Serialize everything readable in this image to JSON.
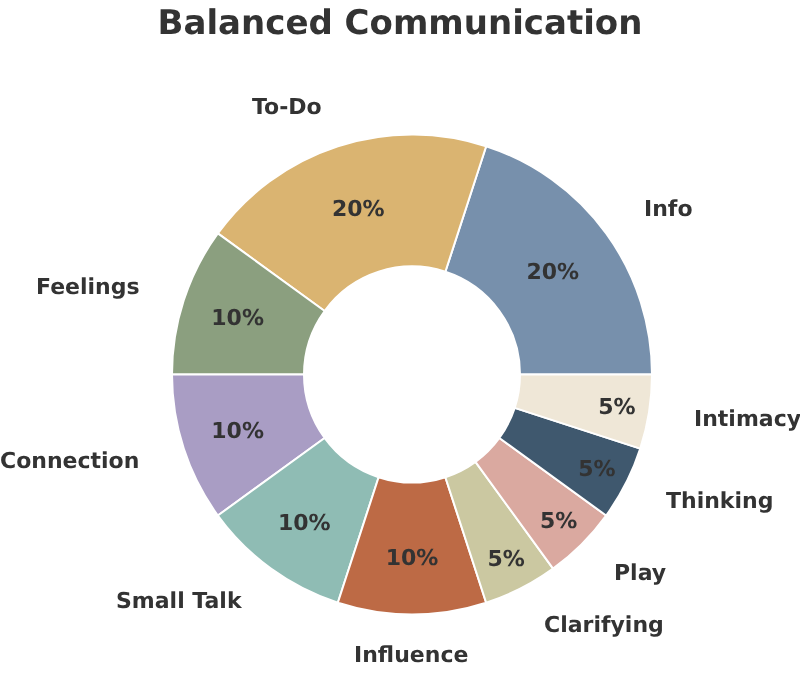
{
  "chart_data": {
    "type": "donut",
    "title": "Balanced Communication",
    "categories": [
      "Info",
      "To-Do",
      "Feelings",
      "Connection",
      "Small Talk",
      "Influence",
      "Clarifying",
      "Play",
      "Thinking",
      "Intimacy"
    ],
    "values": [
      20,
      20,
      10,
      10,
      10,
      10,
      5,
      5,
      5,
      5
    ],
    "value_labels": [
      "20%",
      "20%",
      "10%",
      "10%",
      "10%",
      "10%",
      "5%",
      "5%",
      "5%",
      "5%"
    ],
    "colors": [
      "#7790ac",
      "#dab471",
      "#8b9f7f",
      "#a99dc4",
      "#8fbcb4",
      "#bd6a45",
      "#cbc8a1",
      "#daa9a0",
      "#3f586e",
      "#efe7d7"
    ],
    "legend": false
  }
}
